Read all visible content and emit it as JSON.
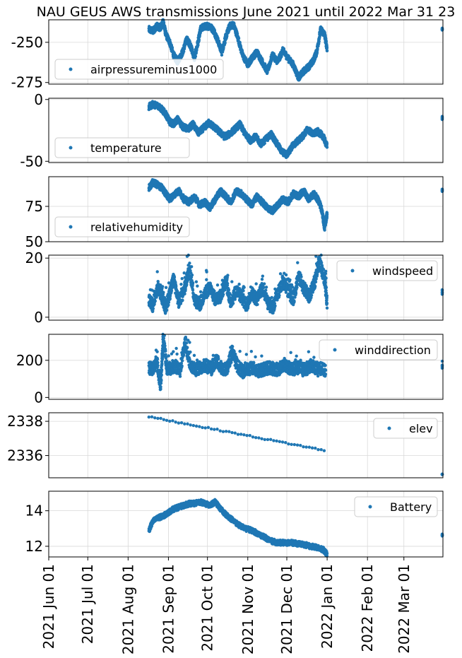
{
  "figure_title": "NAU GEUS AWS transmissions June 2021 until 2022 Mar 31 23",
  "colors": {
    "series": "#1f77b4",
    "grid": "#d9d9d9",
    "axes": "#000000"
  },
  "x_axis": {
    "type": "date",
    "range": [
      "2021-06-01",
      "2022-03-31"
    ],
    "tick_dates": [
      "2021-06-01",
      "2021-07-01",
      "2021-08-01",
      "2021-09-01",
      "2021-10-01",
      "2021-11-01",
      "2021-12-01",
      "2022-01-01",
      "2022-02-01",
      "2022-03-01"
    ],
    "tick_labels": [
      "2021 Jun 01",
      "2021 Jul 01",
      "2021 Aug 01",
      "2021 Sep 01",
      "2021 Oct 01",
      "2021 Nov 01",
      "2021 Dec 01",
      "2022 Jan 01",
      "2022 Feb 01",
      "2022 Mar 01"
    ]
  },
  "chart_data": [
    {
      "type": "scatter",
      "name": "airpressureminus1000",
      "legend_position": "lower-left",
      "ylim": [
        -276,
        -236
      ],
      "yticks": [
        -275,
        -250
      ],
      "x_dates": [
        "2021-08-17",
        "2021-08-20",
        "2021-08-23",
        "2021-08-26",
        "2021-08-28",
        "2021-08-30",
        "2021-09-02",
        "2021-09-05",
        "2021-09-08",
        "2021-09-12",
        "2021-09-15",
        "2021-09-18",
        "2021-09-21",
        "2021-09-24",
        "2021-09-26",
        "2021-09-30",
        "2021-10-03",
        "2021-10-06",
        "2021-10-09",
        "2021-10-12",
        "2021-10-15",
        "2021-10-18",
        "2021-10-21",
        "2021-10-24",
        "2021-10-28",
        "2021-11-01",
        "2021-11-04",
        "2021-11-08",
        "2021-11-12",
        "2021-11-16",
        "2021-11-20",
        "2021-11-24",
        "2021-11-28",
        "2021-12-02",
        "2021-12-06",
        "2021-12-10",
        "2021-12-14",
        "2021-12-18",
        "2021-12-21",
        "2021-12-24",
        "2021-12-27",
        "2021-12-30",
        "2022-01-01",
        "2022-03-31"
      ],
      "values": [
        -242,
        -243,
        -240,
        -241,
        -237,
        -245,
        -250,
        -258,
        -262,
        -256,
        -248,
        -252,
        -260,
        -249,
        -241,
        -240,
        -240,
        -243,
        -249,
        -256,
        -247,
        -240,
        -239,
        -246,
        -258,
        -264,
        -260,
        -256,
        -262,
        -268,
        -258,
        -262,
        -255,
        -260,
        -264,
        -272,
        -268,
        -265,
        -262,
        -256,
        -242,
        -245,
        -254,
        -242
      ]
    },
    {
      "type": "scatter",
      "name": "temperature",
      "legend_position": "lower-left",
      "ylim": [
        -51,
        1
      ],
      "yticks": [
        0,
        -50
      ],
      "x_dates": [
        "2021-08-17",
        "2021-08-20",
        "2021-08-24",
        "2021-08-27",
        "2021-08-30",
        "2021-09-02",
        "2021-09-05",
        "2021-09-08",
        "2021-09-12",
        "2021-09-16",
        "2021-09-20",
        "2021-09-24",
        "2021-09-28",
        "2021-10-02",
        "2021-10-06",
        "2021-10-10",
        "2021-10-14",
        "2021-10-18",
        "2021-10-22",
        "2021-10-26",
        "2021-10-30",
        "2021-11-03",
        "2021-11-07",
        "2021-11-11",
        "2021-11-15",
        "2021-11-19",
        "2021-11-23",
        "2021-11-27",
        "2021-12-01",
        "2021-12-05",
        "2021-12-09",
        "2021-12-13",
        "2021-12-17",
        "2021-12-21",
        "2021-12-25",
        "2021-12-29",
        "2022-01-01",
        "2022-03-31"
      ],
      "values": [
        -6,
        -4,
        -5,
        -8,
        -12,
        -18,
        -20,
        -16,
        -22,
        -24,
        -20,
        -27,
        -23,
        -19,
        -22,
        -26,
        -30,
        -28,
        -24,
        -20,
        -28,
        -33,
        -30,
        -36,
        -32,
        -28,
        -35,
        -42,
        -45,
        -38,
        -34,
        -30,
        -24,
        -28,
        -26,
        -30,
        -38,
        -15
      ]
    },
    {
      "type": "scatter",
      "name": "relativehumidity",
      "legend_position": "lower-left",
      "ylim": [
        50,
        96
      ],
      "yticks": [
        50,
        75
      ],
      "x_dates": [
        "2021-08-17",
        "2021-08-20",
        "2021-08-24",
        "2021-08-27",
        "2021-08-30",
        "2021-09-02",
        "2021-09-05",
        "2021-09-09",
        "2021-09-13",
        "2021-09-17",
        "2021-09-21",
        "2021-09-25",
        "2021-09-29",
        "2021-10-03",
        "2021-10-07",
        "2021-10-11",
        "2021-10-15",
        "2021-10-19",
        "2021-10-23",
        "2021-10-27",
        "2021-10-31",
        "2021-11-04",
        "2021-11-08",
        "2021-11-12",
        "2021-11-16",
        "2021-11-20",
        "2021-11-24",
        "2021-11-28",
        "2021-12-02",
        "2021-12-06",
        "2021-12-10",
        "2021-12-14",
        "2021-12-18",
        "2021-12-22",
        "2021-12-26",
        "2021-12-28",
        "2021-12-30",
        "2022-01-01",
        "2022-03-31"
      ],
      "values": [
        88,
        92,
        90,
        88,
        84,
        80,
        83,
        86,
        80,
        78,
        82,
        76,
        78,
        74,
        80,
        86,
        82,
        78,
        86,
        84,
        80,
        76,
        82,
        78,
        74,
        72,
        76,
        80,
        78,
        84,
        82,
        86,
        80,
        84,
        78,
        72,
        60,
        70,
        86
      ]
    },
    {
      "type": "scatter",
      "name": "windspeed",
      "legend_position": "upper-right",
      "ylim": [
        -1,
        21
      ],
      "yticks": [
        0,
        20
      ],
      "x_dates": [
        "2021-08-17",
        "2021-08-20",
        "2021-08-24",
        "2021-08-27",
        "2021-08-30",
        "2021-09-02",
        "2021-09-05",
        "2021-09-09",
        "2021-09-13",
        "2021-09-17",
        "2021-09-21",
        "2021-09-25",
        "2021-09-29",
        "2021-10-03",
        "2021-10-07",
        "2021-10-11",
        "2021-10-15",
        "2021-10-19",
        "2021-10-23",
        "2021-10-27",
        "2021-10-31",
        "2021-11-04",
        "2021-11-08",
        "2021-11-12",
        "2021-11-16",
        "2021-11-20",
        "2021-11-24",
        "2021-11-28",
        "2021-12-02",
        "2021-12-06",
        "2021-12-10",
        "2021-12-14",
        "2021-12-18",
        "2021-12-22",
        "2021-12-26",
        "2021-12-30",
        "2022-01-01",
        "2022-03-31"
      ],
      "values": [
        6,
        4,
        10,
        7,
        3,
        8,
        13,
        5,
        9,
        17,
        6,
        4,
        8,
        10,
        6,
        7,
        12,
        5,
        9,
        7,
        4,
        8,
        6,
        10,
        5,
        3,
        8,
        12,
        9,
        6,
        14,
        10,
        7,
        11,
        19,
        13,
        5,
        8
      ]
    },
    {
      "type": "scatter",
      "name": "winddirection",
      "legend_position": "upper-right",
      "ylim": [
        -10,
        340
      ],
      "yticks": [
        0,
        200
      ],
      "x_dates": [
        "2021-08-17",
        "2021-08-20",
        "2021-08-23",
        "2021-08-26",
        "2021-08-28",
        "2021-08-31",
        "2021-09-03",
        "2021-09-06",
        "2021-09-10",
        "2021-09-14",
        "2021-09-18",
        "2021-09-22",
        "2021-09-26",
        "2021-09-30",
        "2021-10-04",
        "2021-10-08",
        "2021-10-12",
        "2021-10-16",
        "2021-10-20",
        "2021-10-24",
        "2021-10-28",
        "2021-11-01",
        "2021-11-05",
        "2021-11-09",
        "2021-11-13",
        "2021-11-17",
        "2021-11-21",
        "2021-11-25",
        "2021-11-29",
        "2021-12-03",
        "2021-12-07",
        "2021-12-11",
        "2021-12-15",
        "2021-12-19",
        "2021-12-23",
        "2021-12-27",
        "2021-12-31",
        "2022-03-31"
      ],
      "values": [
        160,
        150,
        200,
        60,
        320,
        150,
        160,
        170,
        145,
        300,
        160,
        150,
        165,
        170,
        155,
        200,
        160,
        150,
        250,
        170,
        140,
        150,
        160,
        145,
        150,
        160,
        155,
        150,
        180,
        160,
        155,
        165,
        150,
        170,
        160,
        155,
        145,
        175
      ]
    },
    {
      "type": "scatter",
      "name": "elev",
      "legend_position": "upper-right",
      "ylim": [
        2334.7,
        2338.5
      ],
      "yticks": [
        2336,
        2338
      ],
      "x_dates": [
        "2021-08-17",
        "2022-01-01",
        "2022-03-31"
      ],
      "values": [
        2338.27,
        2336.27,
        2334.9
      ]
    },
    {
      "type": "scatter",
      "name": "Battery",
      "legend_position": "upper-right",
      "ylim": [
        11.4,
        15.1
      ],
      "yticks": [
        12,
        14
      ],
      "x_dates": [
        "2021-08-17",
        "2021-08-20",
        "2021-08-24",
        "2021-08-28",
        "2021-09-01",
        "2021-09-05",
        "2021-09-09",
        "2021-09-13",
        "2021-09-17",
        "2021-09-21",
        "2021-09-25",
        "2021-09-29",
        "2021-10-03",
        "2021-10-07",
        "2021-10-11",
        "2021-10-15",
        "2021-10-20",
        "2021-10-25",
        "2021-10-30",
        "2021-11-04",
        "2021-11-09",
        "2021-11-14",
        "2021-11-19",
        "2021-11-24",
        "2021-11-29",
        "2021-12-04",
        "2021-12-09",
        "2021-12-14",
        "2021-12-19",
        "2021-12-24",
        "2021-12-29",
        "2022-01-01",
        "2022-03-31"
      ],
      "values": [
        12.9,
        13.4,
        13.6,
        13.7,
        13.9,
        14.1,
        14.2,
        14.3,
        14.4,
        14.4,
        14.5,
        14.4,
        14.3,
        14.5,
        14.1,
        13.8,
        13.5,
        13.2,
        13.0,
        12.9,
        12.7,
        12.5,
        12.3,
        12.2,
        12.2,
        12.2,
        12.15,
        12.1,
        12.0,
        11.95,
        11.8,
        11.55,
        12.6
      ]
    }
  ]
}
